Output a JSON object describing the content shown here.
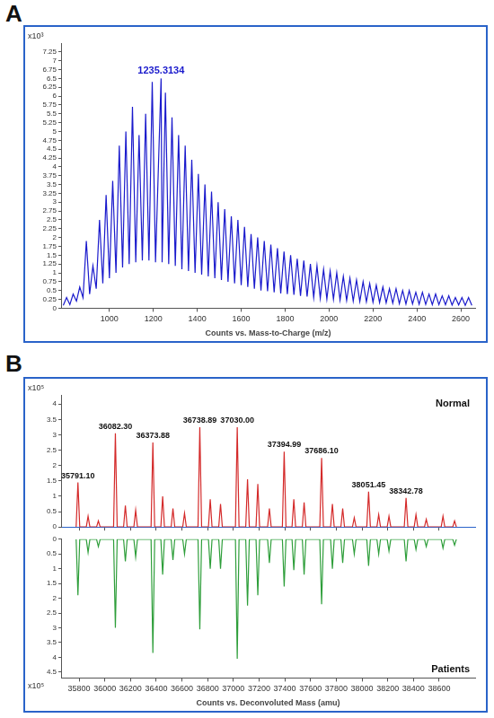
{
  "chart_data": [
    {
      "type": "line",
      "panel_label": "A",
      "y_multiplier": "x10³",
      "x_label": "Counts vs. Mass-to-Charge (m/z)",
      "color": "#1a1acc",
      "grid": false,
      "xlim": [
        780,
        2665
      ],
      "xticks": [
        1000,
        1200,
        1400,
        1600,
        1800,
        2000,
        2200,
        2400,
        2600
      ],
      "ylim": [
        0,
        7.5
      ],
      "yticks": [
        0,
        0.25,
        0.5,
        0.75,
        1,
        1.25,
        1.5,
        1.75,
        2,
        2.25,
        2.5,
        2.75,
        3,
        3.25,
        3.5,
        3.75,
        4,
        4.25,
        4.5,
        4.75,
        5,
        5.25,
        5.5,
        5.75,
        6,
        6.25,
        6.5,
        6.75,
        7,
        7.25
      ],
      "x": [
        790,
        805,
        820,
        835,
        850,
        865,
        880,
        895,
        910,
        925,
        940,
        955,
        970,
        985,
        1000,
        1015,
        1030,
        1045,
        1060,
        1075,
        1090,
        1105,
        1120,
        1135,
        1150,
        1165,
        1180,
        1195,
        1210,
        1235.3134,
        1240,
        1255,
        1270,
        1285,
        1300,
        1315,
        1330,
        1345,
        1360,
        1375,
        1390,
        1405,
        1420,
        1435,
        1450,
        1465,
        1480,
        1495,
        1510,
        1525,
        1540,
        1555,
        1570,
        1585,
        1600,
        1615,
        1630,
        1645,
        1660,
        1675,
        1690,
        1705,
        1720,
        1735,
        1750,
        1765,
        1780,
        1795,
        1810,
        1825,
        1840,
        1855,
        1870,
        1885,
        1900,
        1915,
        1930,
        1945,
        1960,
        1975,
        1990,
        2005,
        2020,
        2035,
        2050,
        2065,
        2080,
        2095,
        2110,
        2125,
        2140,
        2155,
        2170,
        2185,
        2200,
        2215,
        2230,
        2245,
        2260,
        2275,
        2290,
        2305,
        2320,
        2335,
        2350,
        2365,
        2380,
        2395,
        2410,
        2425,
        2440,
        2455,
        2470,
        2485,
        2500,
        2515,
        2530,
        2545,
        2560,
        2575,
        2590,
        2605,
        2620,
        2635,
        2650
      ],
      "values": [
        0.08,
        0.3,
        0.1,
        0.4,
        0.2,
        0.6,
        0.3,
        1.9,
        0.4,
        1.2,
        0.55,
        2.5,
        0.7,
        3.2,
        0.85,
        3.6,
        1.0,
        4.6,
        1.15,
        5.0,
        1.25,
        5.7,
        1.3,
        4.9,
        1.35,
        5.5,
        1.35,
        6.4,
        1.3,
        6.5,
        1.3,
        6.1,
        1.25,
        5.4,
        1.2,
        4.9,
        1.1,
        4.6,
        1.05,
        4.2,
        1.0,
        3.8,
        0.95,
        3.5,
        0.9,
        3.3,
        0.85,
        3.0,
        0.8,
        2.8,
        0.75,
        2.6,
        0.7,
        2.5,
        0.65,
        2.3,
        0.6,
        2.1,
        0.55,
        2.0,
        0.5,
        1.9,
        0.48,
        1.8,
        0.45,
        1.7,
        0.42,
        1.6,
        0.4,
        1.5,
        0.38,
        1.4,
        0.35,
        1.35,
        0.33,
        1.25,
        0.3,
        1.2,
        0.28,
        1.1,
        0.26,
        1.05,
        0.25,
        1.0,
        0.23,
        0.9,
        0.22,
        0.85,
        0.2,
        0.8,
        0.19,
        0.75,
        0.18,
        0.7,
        0.17,
        0.65,
        0.16,
        0.6,
        0.15,
        0.55,
        0.14,
        0.55,
        0.13,
        0.5,
        0.12,
        0.5,
        0.12,
        0.45,
        0.11,
        0.45,
        0.11,
        0.4,
        0.1,
        0.4,
        0.1,
        0.35,
        0.1,
        0.35,
        0.09,
        0.3,
        0.09,
        0.3,
        0.08,
        0.3,
        0.08
      ],
      "peak_labels": [
        {
          "x": 1235.3134,
          "y": 6.5,
          "label": "1235.3134"
        }
      ]
    },
    {
      "type": "line",
      "panel_label": "B",
      "y_multiplier": "x10⁵",
      "grid": false,
      "legend": "top right",
      "tick_labels": "y",
      "xlim": [
        35660,
        38880
      ],
      "xticks": [
        35800,
        36000,
        36200,
        36400,
        36600,
        36800,
        37000,
        37200,
        37400,
        37600,
        37800,
        38000,
        38200,
        38400,
        38600
      ],
      "ylim": [
        0,
        4.3
      ],
      "yticks": [
        0,
        0.5,
        1,
        1.5,
        2,
        2.5,
        3,
        3.5,
        4
      ],
      "x": [
        35777.1,
        35791.1,
        35805.1,
        35856,
        35870,
        35884,
        35936,
        35950,
        35964,
        36068.3,
        36082.3,
        36096.3,
        36146,
        36160,
        36174,
        36226,
        36240,
        36254,
        36359.88,
        36373.88,
        36387.88,
        36436,
        36450,
        36464,
        36516,
        36530,
        36544,
        36606,
        36620,
        36634,
        36724.89,
        36738.89,
        36752.89,
        36806,
        36820,
        36834,
        36886,
        36900,
        36914,
        37016,
        37030,
        37044,
        37096,
        37110,
        37124,
        37176,
        37190,
        37204,
        37266,
        37280,
        37294,
        37380.99,
        37394.99,
        37408.99,
        37456,
        37470,
        37484,
        37536,
        37550,
        37564,
        37672.1,
        37686.1,
        37700.1,
        37756,
        37770,
        37784,
        37836,
        37850,
        37864,
        37926,
        37940,
        37954,
        38037.45,
        38051.45,
        38065.45,
        38116,
        38130,
        38144,
        38196,
        38210,
        38224,
        38328.78,
        38342.78,
        38356.78,
        38406,
        38420,
        38434,
        38486,
        38500,
        38514,
        38616,
        38630,
        38644,
        38706,
        38720,
        38734
      ],
      "series": [
        {
          "name": "Normal",
          "color": "#d42a2a",
          "values": [
            0,
            1.45,
            0,
            0,
            0.35,
            0,
            0,
            0.2,
            0,
            0,
            3.05,
            0,
            0,
            0.7,
            0,
            0,
            0.55,
            0,
            0,
            2.75,
            0,
            0,
            1.0,
            0,
            0,
            0.6,
            0,
            0,
            0.45,
            0,
            0,
            3.25,
            0,
            0,
            0.9,
            0,
            0,
            0.75,
            0,
            0,
            3.25,
            0,
            0,
            1.55,
            0,
            0,
            1.4,
            0,
            0,
            0.6,
            0,
            0,
            2.45,
            0,
            0,
            0.9,
            0,
            0,
            0.8,
            0,
            0,
            2.25,
            0,
            0,
            0.75,
            0,
            0,
            0.6,
            0,
            0,
            0.3,
            0,
            0,
            1.15,
            0,
            0,
            0.4,
            0,
            0,
            0.35,
            0,
            0,
            0.95,
            0,
            0,
            0.4,
            0,
            0,
            0.25,
            0,
            0,
            0.35,
            0,
            0,
            0.2,
            0
          ]
        }
      ],
      "peak_labels": [
        {
          "x": 35791.1,
          "y": 1.45,
          "label": "35791.10"
        },
        {
          "x": 36082.3,
          "y": 3.05,
          "label": "36082.30"
        },
        {
          "x": 36373.88,
          "y": 2.75,
          "label": "36373.88"
        },
        {
          "x": 36738.89,
          "y": 3.25,
          "label": "36738.89"
        },
        {
          "x": 37030,
          "y": 3.25,
          "label": "37030.00"
        },
        {
          "x": 37394.99,
          "y": 2.45,
          "label": "37394.99"
        },
        {
          "x": 37686.1,
          "y": 2.25,
          "label": "37686.10"
        },
        {
          "x": 38051.45,
          "y": 1.15,
          "label": "38051.45"
        },
        {
          "x": 38342.78,
          "y": 0.95,
          "label": "38342.78"
        }
      ]
    },
    {
      "type": "line",
      "y_multiplier": "x10⁵",
      "x_label": "Counts vs. Deconvoluted Mass (amu)",
      "grid": false,
      "legend": "bottom right",
      "xlim": [
        35660,
        38880
      ],
      "xticks": [
        35800,
        36000,
        36200,
        36400,
        36600,
        36800,
        37000,
        37200,
        37400,
        37600,
        37800,
        38000,
        38200,
        38400,
        38600
      ],
      "ylim": [
        0,
        4.7
      ],
      "yticks": [
        0,
        0.5,
        1,
        1.5,
        2,
        2.5,
        3,
        3.5,
        4,
        4.5
      ],
      "x": [
        35777.1,
        35791.1,
        35805.1,
        35856,
        35870,
        35884,
        35936,
        35950,
        35964,
        36068.3,
        36082.3,
        36096.3,
        36146,
        36160,
        36174,
        36226,
        36240,
        36254,
        36359.88,
        36373.88,
        36387.88,
        36436,
        36450,
        36464,
        36516,
        36530,
        36544,
        36606,
        36620,
        36634,
        36724.89,
        36738.89,
        36752.89,
        36806,
        36820,
        36834,
        36886,
        36900,
        36914,
        37016,
        37030,
        37044,
        37096,
        37110,
        37124,
        37176,
        37190,
        37204,
        37266,
        37280,
        37294,
        37380.99,
        37394.99,
        37408.99,
        37456,
        37470,
        37484,
        37536,
        37550,
        37564,
        37672.1,
        37686.1,
        37700.1,
        37756,
        37770,
        37784,
        37836,
        37850,
        37864,
        37926,
        37940,
        37954,
        38037.45,
        38051.45,
        38065.45,
        38116,
        38130,
        38144,
        38196,
        38210,
        38224,
        38328.78,
        38342.78,
        38356.78,
        38406,
        38420,
        38434,
        38486,
        38500,
        38514,
        38616,
        38630,
        38644,
        38706,
        38720,
        38734
      ],
      "series": [
        {
          "name": "Patients",
          "color": "#2e9e3a",
          "values": [
            0,
            1.9,
            0,
            0,
            0.45,
            0,
            0,
            0.25,
            0,
            0,
            3.0,
            0,
            0,
            0.75,
            0,
            0,
            0.6,
            0,
            0,
            3.85,
            0,
            0,
            1.2,
            0,
            0,
            0.7,
            0,
            0,
            0.5,
            0,
            0,
            3.05,
            0,
            0,
            1.0,
            0,
            0,
            1.0,
            0,
            0,
            4.05,
            0,
            0,
            2.25,
            0,
            0,
            1.9,
            0,
            0,
            0.8,
            0,
            0,
            1.6,
            0,
            0,
            1.05,
            0,
            0,
            1.2,
            0,
            0,
            2.2,
            0,
            0,
            1.0,
            0,
            0,
            0.8,
            0,
            0,
            0.5,
            0,
            0,
            0.9,
            0,
            0,
            0.5,
            0,
            0,
            0.4,
            0,
            0,
            0.75,
            0,
            0,
            0.35,
            0,
            0,
            0.25,
            0,
            0,
            0.3,
            0,
            0,
            0.2,
            0
          ]
        }
      ]
    }
  ]
}
